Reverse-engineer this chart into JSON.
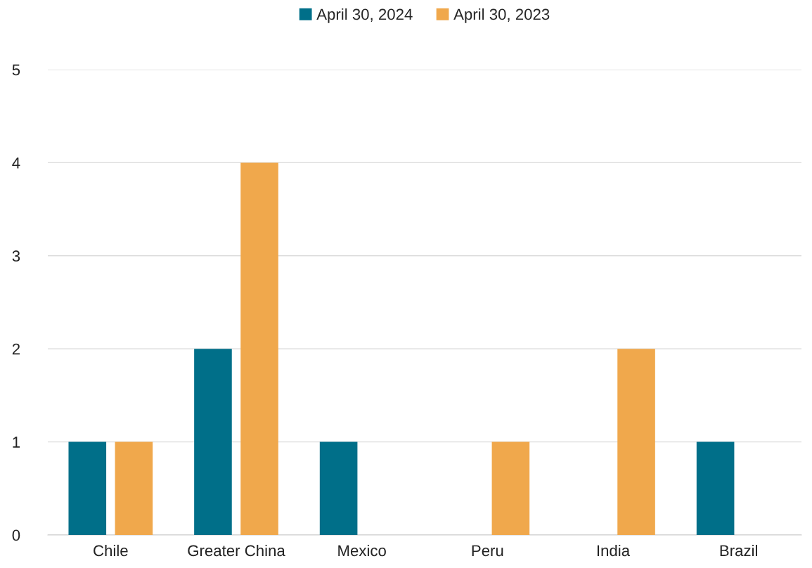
{
  "chart_data": {
    "type": "bar",
    "categories": [
      "Chile",
      "Greater China",
      "Mexico",
      "Peru",
      "India",
      "Brazil"
    ],
    "series": [
      {
        "name": "April 30, 2024",
        "color": "#006f89",
        "values": [
          1,
          2,
          1,
          0,
          0,
          1
        ]
      },
      {
        "name": "April 30, 2023",
        "color": "#f0a84c",
        "values": [
          1,
          4,
          0,
          1,
          2,
          0
        ]
      }
    ],
    "ylim": [
      0,
      5
    ],
    "yticks": [
      0,
      1,
      2,
      3,
      4,
      5
    ],
    "grid": "y",
    "legend": "top"
  }
}
